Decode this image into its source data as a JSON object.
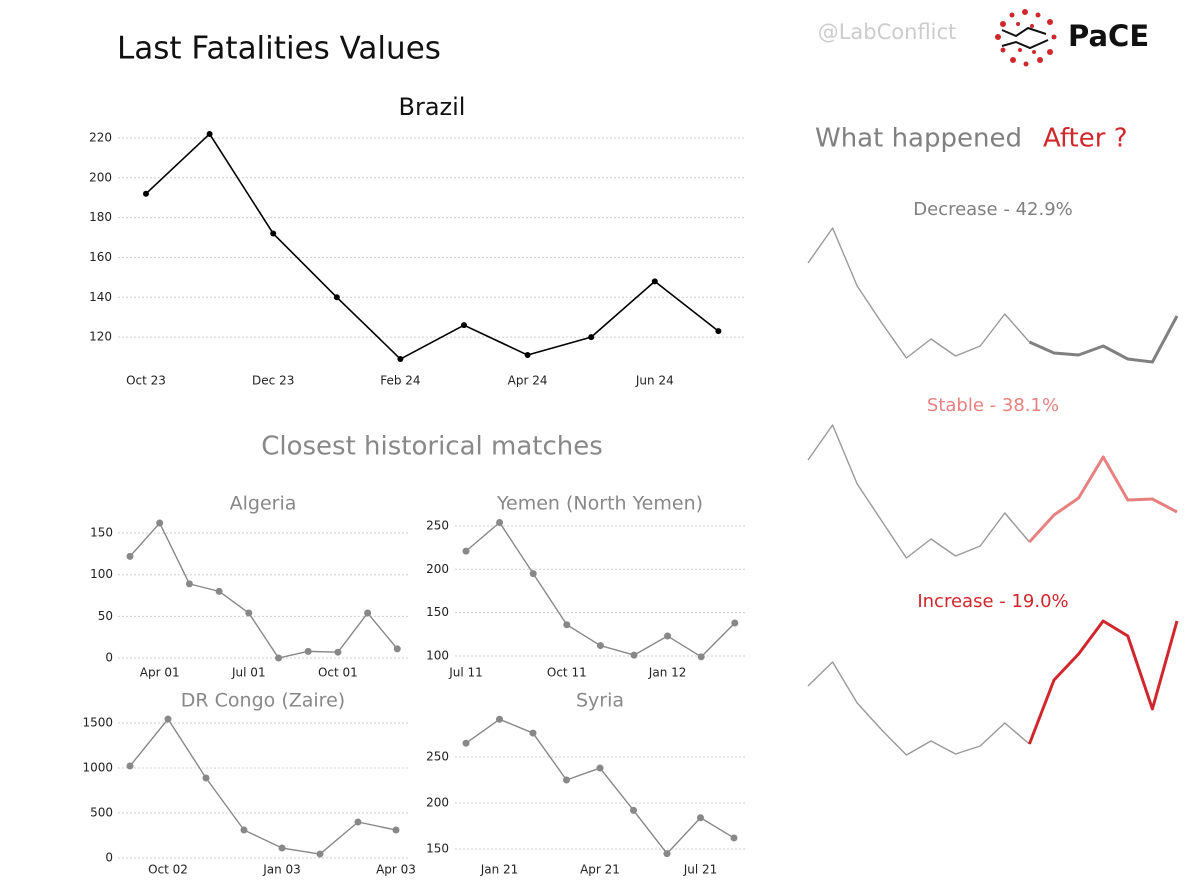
{
  "header": {
    "title": "Last Fatalities Values",
    "handle": "@LabConflict",
    "logo": "PaCE"
  },
  "section_title": "Closest historical matches",
  "side_title": {
    "text": "What happened",
    "highlight": "After ?"
  },
  "chart_data": [
    {
      "type": "line",
      "title": "Brazil",
      "color": "#000000",
      "markers": true,
      "categories": [
        "Oct 23",
        null,
        "Dec 23",
        null,
        "Feb 24",
        null,
        "Apr 24",
        null,
        "Jun 24",
        null
      ],
      "series": [
        {
          "values": [
            192,
            222,
            172,
            140,
            109,
            126,
            111,
            120,
            148,
            123
          ]
        }
      ],
      "ylim": [
        106,
        225
      ],
      "yticks": [
        120,
        140,
        160,
        180,
        200,
        220
      ],
      "grid": true
    },
    {
      "type": "line",
      "title": "Algeria",
      "color": "#888888",
      "markers": true,
      "categories": [
        null,
        "Apr 01",
        null,
        null,
        "Jul 01",
        null,
        null,
        "Oct 01",
        null,
        null
      ],
      "series": [
        {
          "values": [
            122,
            162,
            89,
            80,
            54,
            0,
            8,
            7,
            54,
            11
          ]
        }
      ],
      "ylim": [
        -8,
        160
      ],
      "yticks": [
        0,
        50,
        100,
        150
      ],
      "grid": true
    },
    {
      "type": "line",
      "title": "Yemen (North Yemen)",
      "color": "#888888",
      "markers": true,
      "categories": [
        "Jul 11",
        null,
        null,
        "Oct 11",
        null,
        null,
        "Jan 12",
        null,
        null
      ],
      "series": [
        {
          "values": [
            221,
            254,
            195,
            136,
            112,
            101,
            123,
            99,
            138
          ]
        }
      ],
      "ylim": [
        95,
        260
      ],
      "yticks": [
        100,
        150,
        200,
        250
      ],
      "grid": true
    },
    {
      "type": "line",
      "title": "DR Congo (Zaire)",
      "color": "#888888",
      "markers": true,
      "categories": [
        null,
        "Oct 02",
        null,
        null,
        "Jan 03",
        null,
        null,
        "Apr 03"
      ],
      "series": [
        {
          "values": [
            1022,
            1544,
            889,
            311,
            111,
            44,
            400,
            311
          ]
        }
      ],
      "ylim": [
        -40,
        1600
      ],
      "yticks": [
        0,
        500,
        1000,
        1500
      ],
      "grid": true
    },
    {
      "type": "line",
      "title": "Syria",
      "color": "#888888",
      "markers": true,
      "categories": [
        null,
        "Jan 21",
        null,
        null,
        "Apr 21",
        null,
        null,
        "Jul 21",
        null
      ],
      "series": [
        {
          "values": [
            265,
            291,
            276,
            225,
            238,
            192,
            145,
            184,
            162
          ]
        }
      ],
      "ylim": [
        140,
        300
      ],
      "yticks": [
        150,
        200,
        250
      ],
      "grid": true
    },
    {
      "type": "line",
      "title": "Decrease - 42.9%",
      "title_color": "#808080",
      "color": "#999999",
      "markers": false,
      "ylim": [
        0,
        160
      ],
      "series": [
        {
          "values": [
            117,
            152,
            94,
            57,
            22,
            41,
            24,
            34,
            66,
            38
          ]
        },
        {
          "color": "#808080",
          "values": [
            null,
            null,
            null,
            null,
            null,
            null,
            null,
            null,
            null,
            38,
            27,
            25,
            34,
            21,
            18,
            64
          ]
        }
      ]
    },
    {
      "type": "line",
      "title": "Stable - 38.1%",
      "title_color": "#e88080",
      "color": "#999999",
      "markers": false,
      "ylim": [
        0,
        160
      ],
      "series": [
        {
          "values": [
            120,
            155,
            96,
            59,
            22,
            41,
            24,
            34,
            67,
            38
          ]
        },
        {
          "color": "#e88080",
          "values": [
            null,
            null,
            null,
            null,
            null,
            null,
            null,
            null,
            null,
            38,
            65,
            82,
            123,
            80,
            81,
            68
          ]
        }
      ]
    },
    {
      "type": "line",
      "title": "Increase - 19.0%",
      "title_color": "#d0272d",
      "color": "#999999",
      "markers": false,
      "ylim": [
        0,
        160
      ],
      "series": [
        {
          "values": [
            94,
            118,
            77,
            50,
            25,
            39,
            26,
            34,
            57,
            36
          ]
        },
        {
          "color": "#d0272d",
          "values": [
            null,
            null,
            null,
            null,
            null,
            null,
            null,
            null,
            null,
            36,
            100,
            126,
            159,
            144,
            71,
            159
          ]
        }
      ]
    }
  ]
}
